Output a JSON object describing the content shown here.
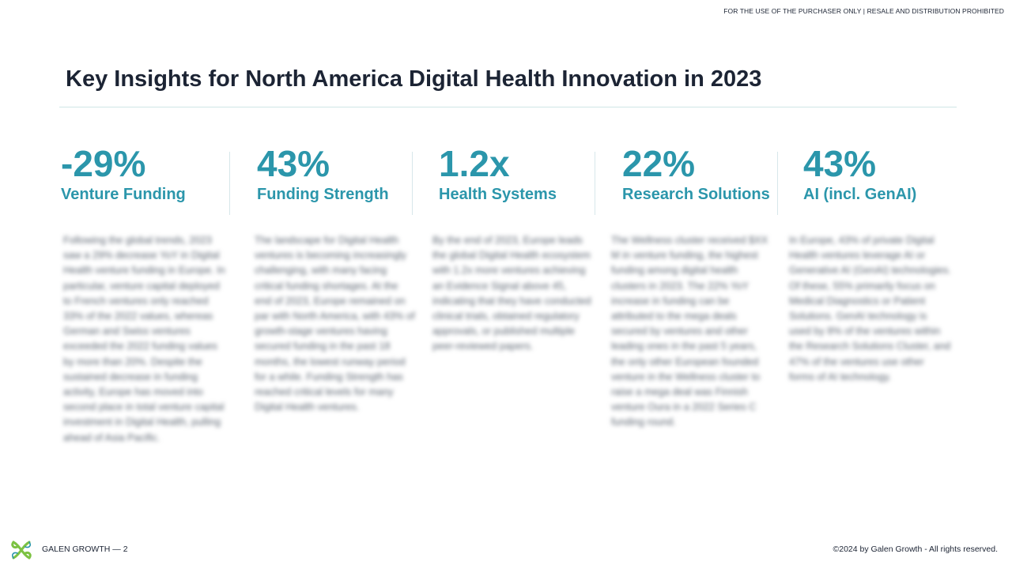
{
  "header": {
    "notice": "FOR THE USE OF THE PURCHASER ONLY | RESALE AND DISTRIBUTION PROHIBITED",
    "title": "Key Insights for North America Digital Health Innovation in 2023"
  },
  "insights": [
    {
      "stat": "-29%",
      "label": "Venture Funding",
      "body": "Following the global trends, 2023 saw a 29% decrease YoY in Digital Health venture funding in Europe. In particular, venture capital deployed to French ventures only reached 33% of the 2022 values, whereas German and Swiss ventures exceeded the 2022 funding values by more than 20%. Despite the sustained decrease in funding activity, Europe has moved into second place in total venture capital investment in Digital Health, pulling ahead of Asia Pacific."
    },
    {
      "stat": "43%",
      "label": "Funding Strength",
      "body": "The landscape for Digital Health ventures is becoming increasingly challenging, with many facing critical funding shortages. At the end of 2023, Europe remained on par with North America, with 43% of growth-stage ventures having secured funding in the past 18 months, the lowest runway period for a while. Funding Strength has reached critical levels for many Digital Health ventures."
    },
    {
      "stat": "1.2x",
      "label": "Health Systems",
      "body": "By the end of 2023, Europe leads the global Digital Health ecosystem with 1.2x more ventures achieving an Evidence Signal above 45, indicating that they have conducted clinical trials, obtained regulatory approvals, or published multiple peer-reviewed papers."
    },
    {
      "stat": "22%",
      "label": "Research Solutions",
      "body": "The Wellness cluster received $XX M in venture funding, the highest funding among digital health clusters in 2023. The 22% YoY increase in funding can be attributed to the mega deals secured by ventures and other leading ones in the past 5 years, the only other European founded venture in the Wellness cluster to raise a mega deal was Finnish venture Oura in a 2022 Series C funding round."
    },
    {
      "stat": "43%",
      "label": "AI (incl. GenAI)",
      "body": "In Europe, 43% of private Digital Health ventures leverage AI or Generative AI (GenAI) technologies. Of these, 55% primarily focus on Medical Diagnostics or Patient Solutions. GenAI technology is used by 8% of the ventures within the Research Solutions Cluster, and 47% of the ventures use other forms of AI technology."
    }
  ],
  "footer": {
    "brand": "GALEN GROWTH",
    "separator": "—",
    "page": "2",
    "copyright": "©2024 by Galen Growth  - All rights reserved."
  },
  "colors": {
    "accent": "#2b96ab",
    "title": "#1c2434",
    "logo_green": "#7cc242"
  }
}
